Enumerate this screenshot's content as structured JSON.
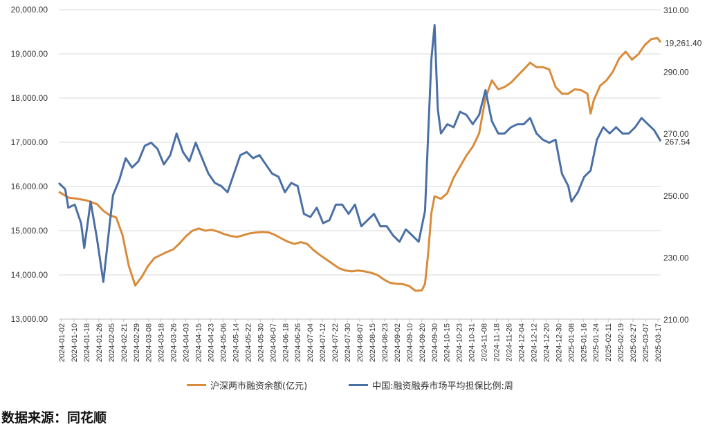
{
  "chart_data": {
    "type": "line",
    "left_axis": {
      "ticks": [
        "20,000.00",
        "19,000.00",
        "18,000.00",
        "17,000.00",
        "16,000.00",
        "15,000.00",
        "14,000.00",
        "13,000.00"
      ],
      "range": [
        13000,
        20000
      ]
    },
    "right_axis": {
      "ticks": [
        "310.00",
        "290.00",
        "270.00",
        "250.00",
        "230.00",
        "210.00"
      ],
      "range": [
        210,
        310
      ]
    },
    "x_tick_labels": [
      "2024-01-02",
      "2024-01-10",
      "2024-01-18",
      "2024-01-26",
      "2024-02-05",
      "2024-02-21",
      "2024-02-29",
      "2024-03-08",
      "2024-03-18",
      "2024-03-26",
      "2024-04-03",
      "2024-04-15",
      "2024-04-23",
      "2024-05-06",
      "2024-05-14",
      "2024-05-22",
      "2024-05-30",
      "2024-06-07",
      "2024-06-18",
      "2024-06-26",
      "2024-07-04",
      "2024-07-12",
      "2024-07-22",
      "2024-07-30",
      "2024-08-07",
      "2024-08-15",
      "2024-08-23",
      "2024-09-02",
      "2024-09-10",
      "2024-09-20",
      "2024-09-30",
      "2024-10-15",
      "2024-10-23",
      "2024-10-31",
      "2024-11-08",
      "2024-11-18",
      "2024-11-26",
      "2024-12-04",
      "2024-12-12",
      "2024-12-20",
      "2024-12-30",
      "2025-01-08",
      "2025-01-16",
      "2025-01-24",
      "2025-02-11",
      "2025-02-19",
      "2025-02-27",
      "2025-03-07",
      "2025-03-17"
    ],
    "series": [
      {
        "name": "沪深两市融资余额(亿元)",
        "axis": "left",
        "color": "#D98B3A",
        "end_label": "19,261.40",
        "values": [
          [
            0,
            15880
          ],
          [
            3,
            15750
          ],
          [
            6,
            15720
          ],
          [
            9,
            15680
          ],
          [
            12,
            15600
          ],
          [
            14,
            15450
          ],
          [
            16,
            15350
          ],
          [
            18,
            15300
          ],
          [
            20,
            14900
          ],
          [
            22,
            14200
          ],
          [
            24,
            13760
          ],
          [
            26,
            13950
          ],
          [
            28,
            14200
          ],
          [
            30,
            14380
          ],
          [
            32,
            14450
          ],
          [
            34,
            14520
          ],
          [
            36,
            14580
          ],
          [
            38,
            14720
          ],
          [
            40,
            14880
          ],
          [
            42,
            15000
          ],
          [
            44,
            15050
          ],
          [
            46,
            15000
          ],
          [
            48,
            15020
          ],
          [
            50,
            14980
          ],
          [
            52,
            14920
          ],
          [
            54,
            14880
          ],
          [
            56,
            14860
          ],
          [
            58,
            14900
          ],
          [
            60,
            14940
          ],
          [
            62,
            14960
          ],
          [
            64,
            14970
          ],
          [
            66,
            14960
          ],
          [
            68,
            14900
          ],
          [
            70,
            14820
          ],
          [
            72,
            14750
          ],
          [
            74,
            14700
          ],
          [
            76,
            14740
          ],
          [
            78,
            14700
          ],
          [
            80,
            14560
          ],
          [
            82,
            14450
          ],
          [
            84,
            14350
          ],
          [
            86,
            14250
          ],
          [
            88,
            14150
          ],
          [
            90,
            14100
          ],
          [
            92,
            14080
          ],
          [
            94,
            14100
          ],
          [
            96,
            14080
          ],
          [
            98,
            14050
          ],
          [
            100,
            14000
          ],
          [
            102,
            13900
          ],
          [
            104,
            13820
          ],
          [
            106,
            13800
          ],
          [
            108,
            13790
          ],
          [
            110,
            13750
          ],
          [
            112,
            13640
          ],
          [
            114,
            13650
          ],
          [
            115,
            13800
          ],
          [
            116,
            14500
          ],
          [
            117,
            15400
          ],
          [
            118,
            15780
          ],
          [
            120,
            15720
          ],
          [
            122,
            15850
          ],
          [
            124,
            16200
          ],
          [
            126,
            16450
          ],
          [
            128,
            16700
          ],
          [
            130,
            16900
          ],
          [
            132,
            17200
          ],
          [
            134,
            18000
          ],
          [
            136,
            18400
          ],
          [
            138,
            18200
          ],
          [
            140,
            18250
          ],
          [
            142,
            18350
          ],
          [
            144,
            18500
          ],
          [
            146,
            18650
          ],
          [
            148,
            18800
          ],
          [
            150,
            18700
          ],
          [
            152,
            18700
          ],
          [
            154,
            18650
          ],
          [
            156,
            18250
          ],
          [
            158,
            18100
          ],
          [
            160,
            18100
          ],
          [
            162,
            18200
          ],
          [
            164,
            18180
          ],
          [
            166,
            18100
          ],
          [
            167,
            17650
          ],
          [
            168,
            17950
          ],
          [
            170,
            18280
          ],
          [
            172,
            18400
          ],
          [
            174,
            18600
          ],
          [
            176,
            18900
          ],
          [
            178,
            19050
          ],
          [
            180,
            18870
          ],
          [
            182,
            18990
          ],
          [
            184,
            19200
          ],
          [
            186,
            19330
          ],
          [
            188,
            19360
          ],
          [
            189,
            19261
          ]
        ]
      },
      {
        "name": "中国:融资融券市场平均担保比例:周",
        "axis": "right",
        "color": "#4A6FA5",
        "end_label": "267.54",
        "values": [
          [
            0,
            254
          ],
          [
            2,
            252
          ],
          [
            3,
            246
          ],
          [
            5,
            247
          ],
          [
            7,
            241
          ],
          [
            8,
            233
          ],
          [
            10,
            248
          ],
          [
            12,
            236
          ],
          [
            14,
            222
          ],
          [
            16,
            241
          ],
          [
            17,
            250
          ],
          [
            19,
            255
          ],
          [
            21,
            262
          ],
          [
            23,
            259
          ],
          [
            25,
            261
          ],
          [
            27,
            266
          ],
          [
            29,
            267
          ],
          [
            31,
            265
          ],
          [
            33,
            260
          ],
          [
            35,
            263
          ],
          [
            37,
            270
          ],
          [
            39,
            264
          ],
          [
            41,
            261
          ],
          [
            43,
            267
          ],
          [
            45,
            262
          ],
          [
            47,
            257
          ],
          [
            49,
            254
          ],
          [
            51,
            253
          ],
          [
            53,
            251
          ],
          [
            55,
            257
          ],
          [
            57,
            263
          ],
          [
            59,
            264
          ],
          [
            61,
            262
          ],
          [
            63,
            263
          ],
          [
            65,
            260
          ],
          [
            67,
            257
          ],
          [
            69,
            256
          ],
          [
            71,
            251
          ],
          [
            73,
            254
          ],
          [
            75,
            253
          ],
          [
            77,
            244
          ],
          [
            79,
            243
          ],
          [
            81,
            246
          ],
          [
            83,
            241
          ],
          [
            85,
            242
          ],
          [
            87,
            247
          ],
          [
            89,
            247
          ],
          [
            91,
            244
          ],
          [
            93,
            247
          ],
          [
            95,
            240
          ],
          [
            97,
            242
          ],
          [
            99,
            244
          ],
          [
            101,
            240
          ],
          [
            103,
            240
          ],
          [
            105,
            237
          ],
          [
            107,
            235
          ],
          [
            109,
            239
          ],
          [
            111,
            237
          ],
          [
            113,
            235
          ],
          [
            115,
            245
          ],
          [
            116,
            270
          ],
          [
            117,
            294
          ],
          [
            118,
            305
          ],
          [
            119,
            278
          ],
          [
            120,
            270
          ],
          [
            122,
            273
          ],
          [
            124,
            272
          ],
          [
            126,
            277
          ],
          [
            128,
            276
          ],
          [
            130,
            273
          ],
          [
            132,
            276
          ],
          [
            134,
            284
          ],
          [
            136,
            274
          ],
          [
            138,
            270
          ],
          [
            140,
            270
          ],
          [
            142,
            272
          ],
          [
            144,
            273
          ],
          [
            146,
            273
          ],
          [
            148,
            275
          ],
          [
            150,
            270
          ],
          [
            152,
            268
          ],
          [
            154,
            267
          ],
          [
            156,
            268
          ],
          [
            158,
            257
          ],
          [
            160,
            253
          ],
          [
            161,
            248
          ],
          [
            163,
            251
          ],
          [
            165,
            256
          ],
          [
            167,
            258
          ],
          [
            169,
            268
          ],
          [
            171,
            272
          ],
          [
            173,
            270
          ],
          [
            175,
            272
          ],
          [
            177,
            270
          ],
          [
            179,
            270
          ],
          [
            181,
            272
          ],
          [
            183,
            275
          ],
          [
            185,
            273
          ],
          [
            187,
            271
          ],
          [
            189,
            267.5
          ]
        ]
      }
    ],
    "grid": true,
    "legend_position": "bottom"
  },
  "source_text": "数据来源：同花顺"
}
